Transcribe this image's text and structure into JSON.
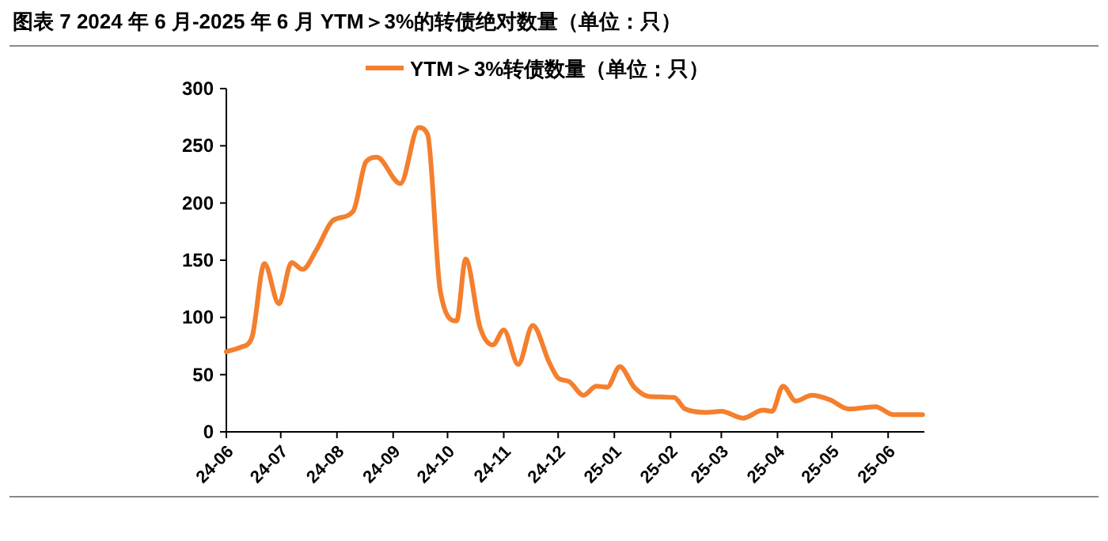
{
  "chart_data": {
    "type": "line",
    "title": "图表 7  2024 年 6 月-2025 年 6 月 YTM＞3%的转债绝对数量（单位：只）",
    "x": [
      "2024-06-01",
      "2024-06-09",
      "2024-06-15",
      "2024-06-22",
      "2024-06-30",
      "2024-07-07",
      "2024-07-13",
      "2024-07-21",
      "2024-07-30",
      "2024-08-10",
      "2024-08-17",
      "2024-08-23",
      "2024-09-05",
      "2024-09-15",
      "2024-09-20",
      "2024-09-27",
      "2024-10-06",
      "2024-10-11",
      "2024-10-19",
      "2024-10-26",
      "2024-11-01",
      "2024-11-09",
      "2024-11-17",
      "2024-11-26",
      "2024-12-01",
      "2024-12-07",
      "2024-12-15",
      "2024-12-22",
      "2024-12-28",
      "2025-01-04",
      "2025-01-12",
      "2025-01-20",
      "2025-02-03",
      "2025-02-09",
      "2025-02-21",
      "2025-03-01",
      "2025-03-13",
      "2025-03-24",
      "2025-03-29",
      "2025-04-04",
      "2025-04-11",
      "2025-04-20",
      "2025-04-30",
      "2025-05-10",
      "2025-05-18",
      "2025-05-25",
      "2025-06-04",
      "2025-06-20"
    ],
    "series": [
      {
        "name": "YTM＞3%转债数量（单位：只）",
        "color": "#f47f2d",
        "values": [
          70,
          74,
          82,
          147,
          112,
          148,
          142,
          160,
          185,
          193,
          236,
          240,
          217,
          266,
          260,
          123,
          97,
          151,
          91,
          76,
          89,
          59,
          93,
          61,
          47,
          44,
          32,
          40,
          39,
          57,
          39,
          31,
          30,
          20,
          17,
          18,
          12,
          19,
          18,
          40,
          27,
          32,
          28,
          20,
          21,
          22,
          15,
          15
        ]
      }
    ],
    "xlim": [
      "2024-06-01",
      "2025-06-21"
    ],
    "xticks": [
      {
        "value": "2024-06-01",
        "label": "24-06"
      },
      {
        "value": "2024-07-01",
        "label": "24-07"
      },
      {
        "value": "2024-08-01",
        "label": "24-08"
      },
      {
        "value": "2024-09-01",
        "label": "24-09"
      },
      {
        "value": "2024-10-01",
        "label": "24-10"
      },
      {
        "value": "2024-11-01",
        "label": "24-11"
      },
      {
        "value": "2024-12-01",
        "label": "24-12"
      },
      {
        "value": "2025-01-01",
        "label": "25-01"
      },
      {
        "value": "2025-02-01",
        "label": "25-02"
      },
      {
        "value": "2025-03-01",
        "label": "25-03"
      },
      {
        "value": "2025-04-01",
        "label": "25-04"
      },
      {
        "value": "2025-05-01",
        "label": "25-05"
      },
      {
        "value": "2025-06-01",
        "label": "25-06"
      }
    ],
    "ylim": [
      0,
      300
    ],
    "yticks": [
      0,
      50,
      100,
      150,
      200,
      250,
      300
    ],
    "grid": false,
    "legend": "top",
    "marker": "none",
    "line_style": "solid"
  }
}
